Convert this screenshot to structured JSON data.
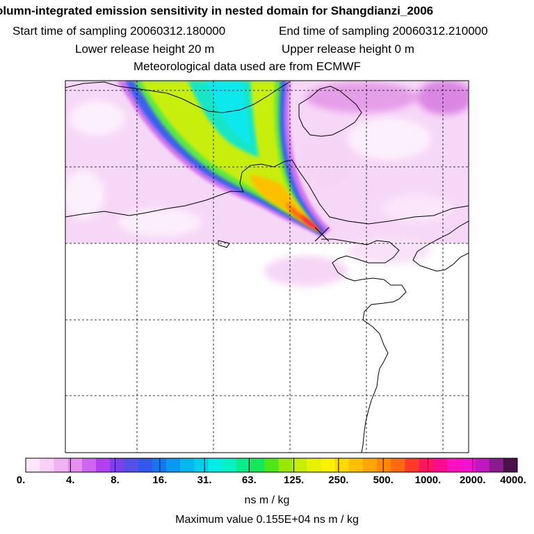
{
  "header": {
    "title": "olumn-integrated emission sensitivity in nested domain for Shangdianzi_2006",
    "start_label": "Start time of sampling 20060312.180000",
    "end_label": "End time of sampling 20060312.210000",
    "lower_label": "Lower release height   20 m",
    "upper_label": "Upper release height    0 m",
    "met_label": "Meteorological data used are from ECMWF"
  },
  "colorbar": {
    "ticks": [
      "0.",
      "4.",
      "8.",
      "16.",
      "31.",
      "63.",
      "125.",
      "250.",
      "500.",
      "1000.",
      "2000.",
      "4000."
    ],
    "colors": [
      "#fde6fd",
      "#f8d0f8",
      "#f0b2f0",
      "#e690f0",
      "#cf66f2",
      "#b43ff2",
      "#7a40ea",
      "#5550e8",
      "#3358ee",
      "#1577f0",
      "#0a99f2",
      "#06b8f0",
      "#05d0ec",
      "#05ece6",
      "#06f0c4",
      "#08ec8c",
      "#14e85a",
      "#4ee818",
      "#98e800",
      "#c6ee00",
      "#e6f200",
      "#faf000",
      "#fcda00",
      "#ffc000",
      "#ffa600",
      "#ff8a00",
      "#ff6a10",
      "#ff3a28",
      "#ff1660",
      "#ff0a90",
      "#ff10c0",
      "#f212d0",
      "#c018c0",
      "#8a1a90",
      "#4a1248"
    ],
    "units": "ns m / kg",
    "max_value": "Maximum value  0.155E+04 ns m / kg"
  },
  "legend_colors": {
    "background_low": "#fde6fd",
    "plume_low": "#f0b2f0",
    "plume_mid": "#05ece6",
    "plume_high": "#ffc000",
    "plume_max": "#ff0a90"
  },
  "map": {
    "receptor_marker": "x-marker-icon"
  }
}
